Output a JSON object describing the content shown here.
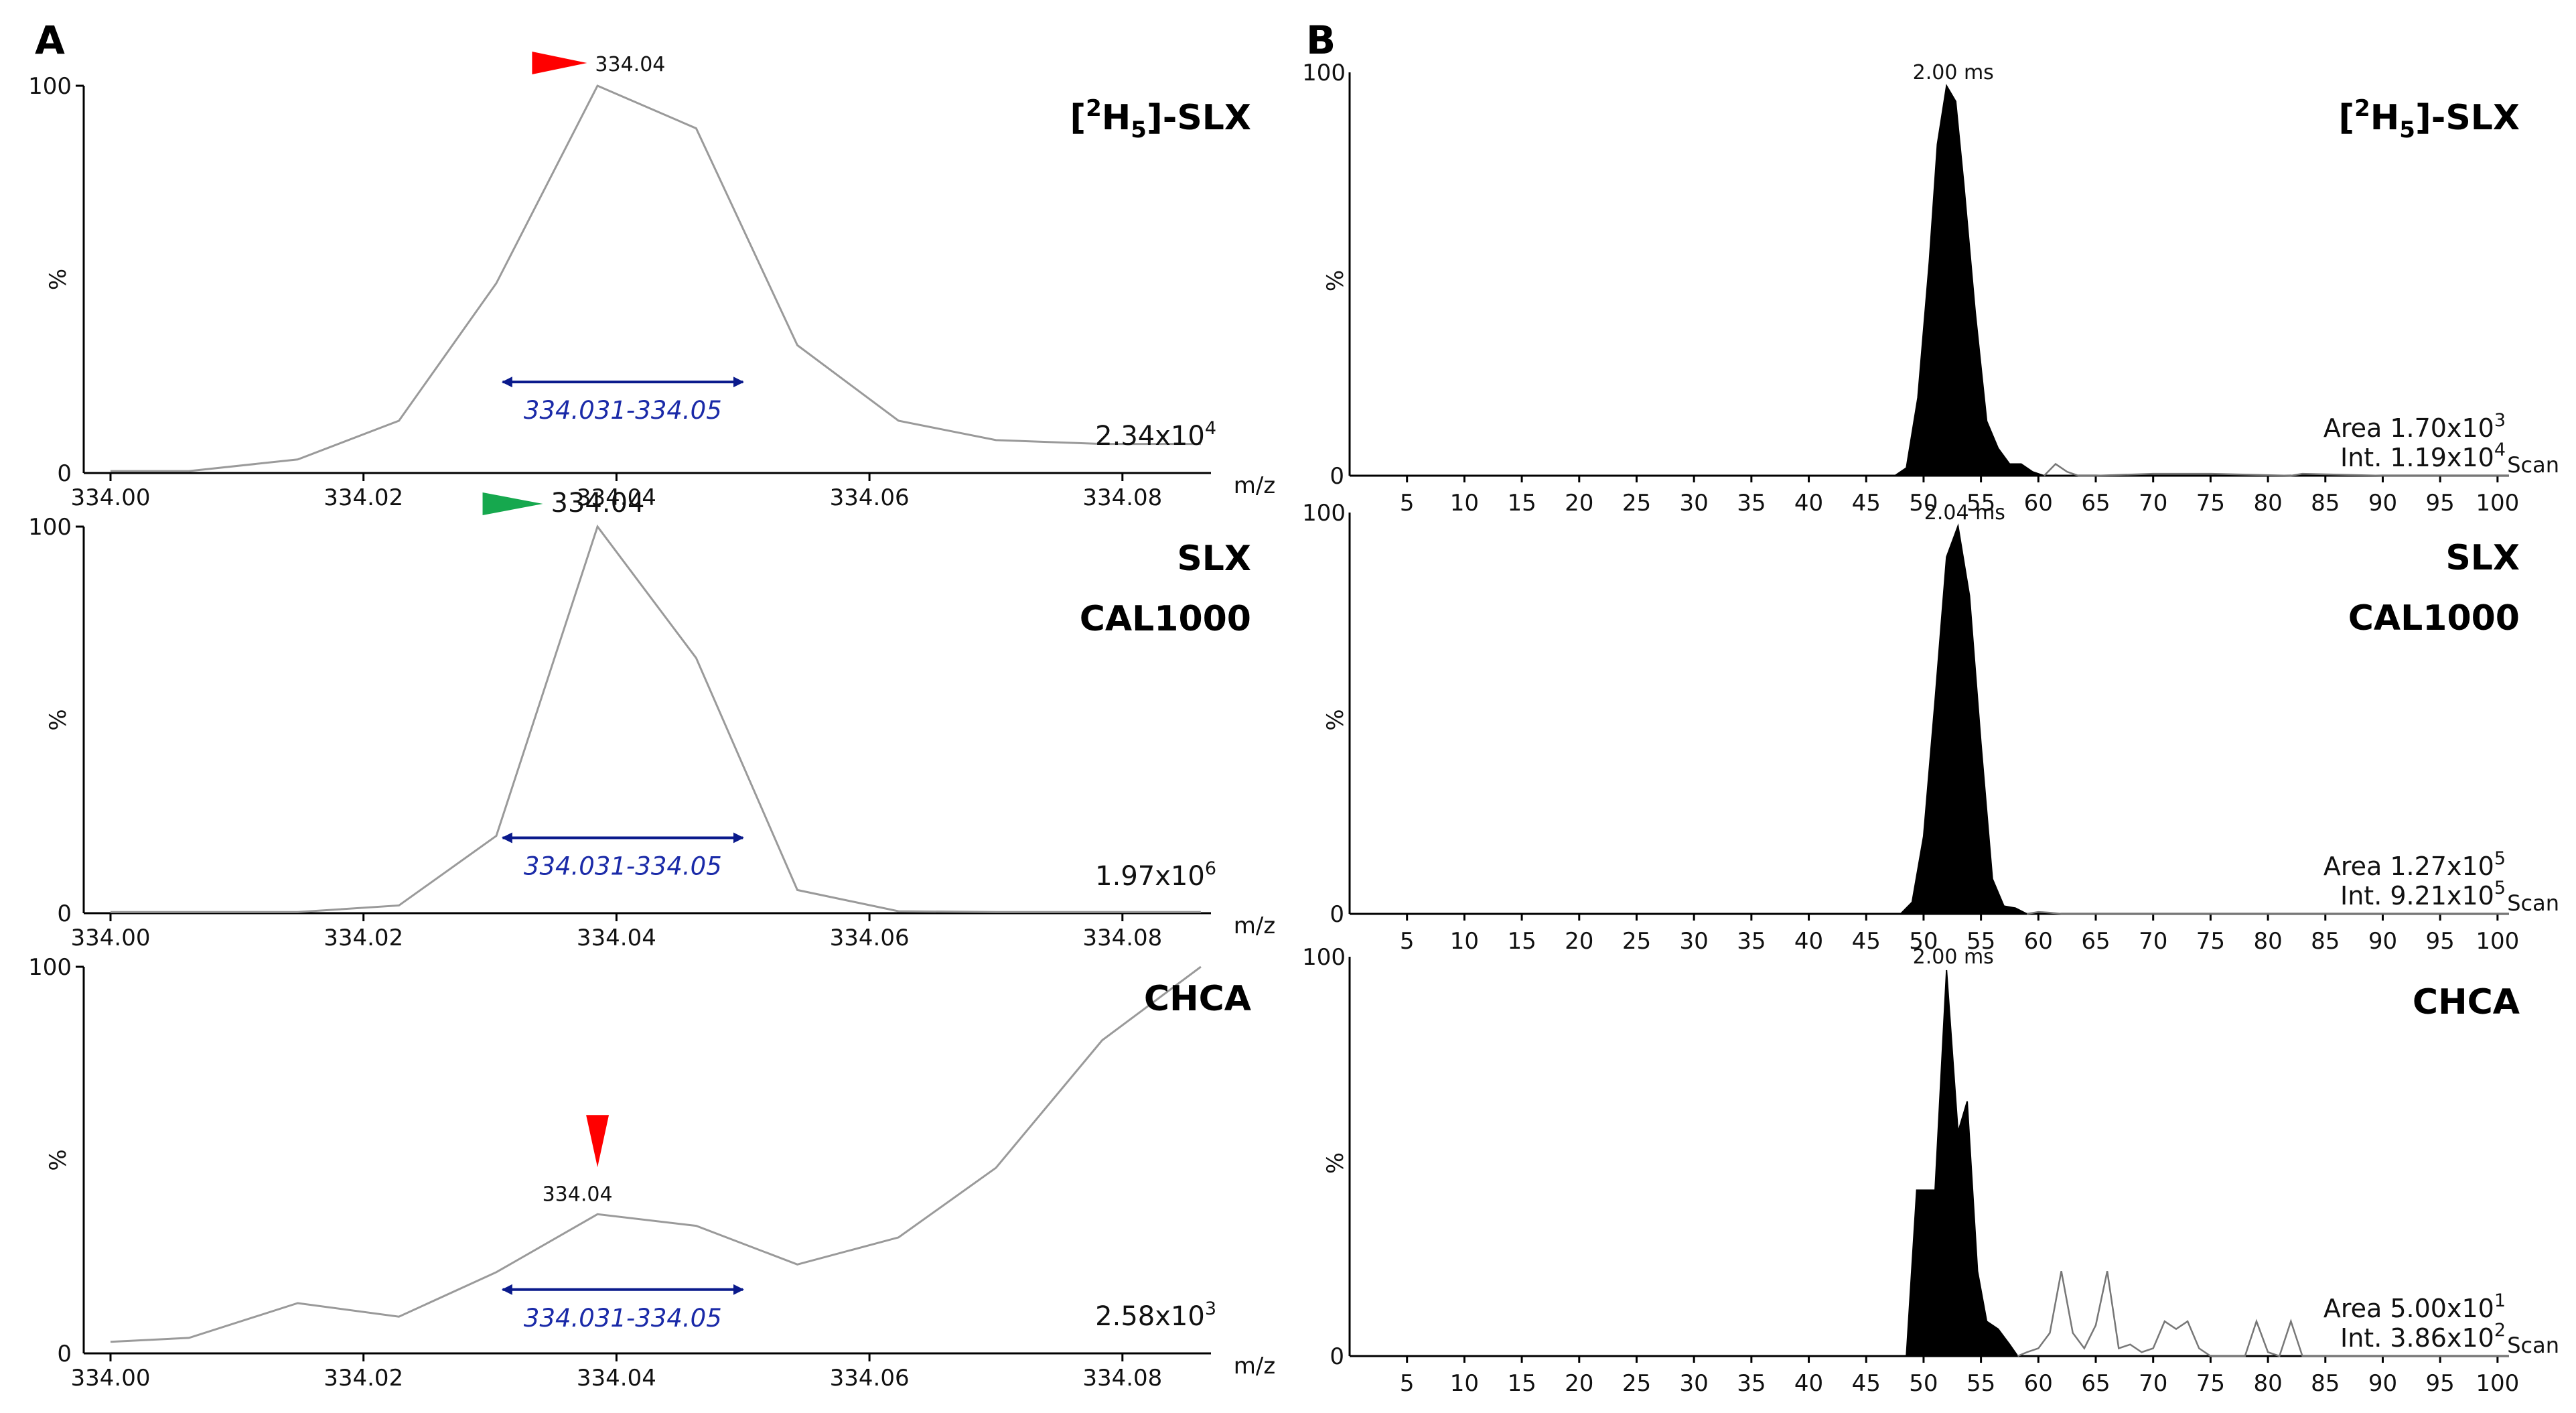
{
  "figure": {
    "panel_a_label": "A",
    "panel_b_label": "B",
    "colors": {
      "trace": "#9a9a9a",
      "window": "#0a1a8c",
      "window_text": "#1a2aa8",
      "red_marker": "#ff0000",
      "green_marker": "#16a84e",
      "fill": "#000000"
    }
  },
  "chart_data": [
    {
      "type": "line",
      "panel": "A",
      "title": "[²H₅]-SLX",
      "title_parts": [
        "[",
        "2",
        "H",
        "5",
        "]-SLX"
      ],
      "xlabel": "m/z",
      "ylabel": "%",
      "xlim": [
        334.0,
        334.087
      ],
      "ylim": [
        0,
        100
      ],
      "xticks": [
        "334.00",
        "334.02",
        "334.04",
        "334.06",
        "334.08"
      ],
      "yticks": [
        "0",
        "100"
      ],
      "x": [
        334.0,
        334.0062,
        334.0148,
        334.0228,
        334.0305,
        334.0385,
        334.0463,
        334.0543,
        334.0623,
        334.07,
        334.0784,
        334.0862
      ],
      "y": [
        0.5,
        0.5,
        3.5,
        13.5,
        49,
        100,
        89,
        33,
        13.5,
        8.5,
        7.5,
        7.5
      ],
      "peak_label": "334.04",
      "peak_marker": "red-right",
      "peak_marker_x": 334.0355,
      "normalization": "2.34x10",
      "normalization_exp": "4",
      "window_label": "334.031-334.05",
      "window": [
        334.031,
        334.05
      ],
      "window_y": 23.5
    },
    {
      "type": "line",
      "panel": "A",
      "title": "SLX",
      "subtitle": "CAL1000",
      "xlabel": "m/z",
      "ylabel": "%",
      "xlim": [
        334.0,
        334.087
      ],
      "ylim": [
        0,
        100
      ],
      "xticks": [
        "334.00",
        "334.02",
        "334.04",
        "334.06",
        "334.08"
      ],
      "yticks": [
        "0",
        "100"
      ],
      "x": [
        334.0,
        334.0062,
        334.0148,
        334.0228,
        334.0305,
        334.0385,
        334.0463,
        334.0543,
        334.0623,
        334.07,
        334.0784,
        334.0862
      ],
      "y": [
        0.3,
        0.3,
        0.3,
        2,
        20,
        100,
        66,
        6,
        0.5,
        0.3,
        0.3,
        0.3
      ],
      "peak_label": "334.04",
      "peak_marker": "green-right",
      "peak_marker_x": 334.0318,
      "normalization": "1.97x10",
      "normalization_exp": "6",
      "window_label": "334.031-334.05",
      "window": [
        334.031,
        334.05
      ],
      "window_y": 19.5
    },
    {
      "type": "line",
      "panel": "A",
      "title": "CHCA",
      "xlabel": "m/z",
      "ylabel": "%",
      "xlim": [
        334.0,
        334.087
      ],
      "ylim": [
        0,
        100
      ],
      "xticks": [
        "334.00",
        "334.02",
        "334.04",
        "334.06",
        "334.08"
      ],
      "yticks": [
        "0",
        "100"
      ],
      "x": [
        334.0,
        334.0062,
        334.0148,
        334.0228,
        334.0305,
        334.0385,
        334.0463,
        334.0543,
        334.0623,
        334.07,
        334.0784,
        334.0862
      ],
      "y": [
        3,
        4,
        13,
        9.5,
        21,
        36,
        33,
        23,
        30,
        48,
        81,
        100
      ],
      "peak_label": "334.04",
      "peak_marker": "red-down",
      "peak_marker_x": 334.0385,
      "normalization": "2.58x10",
      "normalization_exp": "3",
      "window_label": "334.031-334.05",
      "window": [
        334.031,
        334.05
      ],
      "window_y": 16.5
    },
    {
      "type": "area",
      "panel": "B",
      "title": "[²H₅]-SLX",
      "title_parts": [
        "[",
        "2",
        "H",
        "5",
        "]-SLX"
      ],
      "xlabel": "Scan",
      "ylabel": "%",
      "xlim": [
        0,
        101
      ],
      "ylim": [
        0,
        100
      ],
      "xticks": [
        "5",
        "10",
        "15",
        "20",
        "25",
        "30",
        "35",
        "40",
        "45",
        "50",
        "55",
        "60",
        "65",
        "70",
        "75",
        "80",
        "85",
        "90",
        "95",
        "100"
      ],
      "yticks": [
        "0",
        "100"
      ],
      "rt_label": "2.00 ms",
      "rt_scan": 52,
      "x": [
        1,
        47.5,
        48.5,
        49.5,
        50.5,
        51.2,
        52,
        52.8,
        53.5,
        54.5,
        55.5,
        56.5,
        57.5,
        58.5,
        59.5,
        60.5,
        101
      ],
      "y": [
        0,
        0,
        2,
        20,
        55,
        85,
        100,
        96,
        75,
        42,
        14,
        7,
        3,
        3,
        1,
        0,
        0
      ],
      "noise_x": [
        60.5,
        61.5,
        62.5,
        63.5,
        65,
        70,
        75,
        82,
        83,
        90,
        101
      ],
      "noise_y": [
        0,
        3,
        1,
        0,
        0,
        0.5,
        0.5,
        0,
        0.5,
        0,
        0
      ],
      "area": "Area 1.70x10",
      "area_exp": "3",
      "intensity": "Int. 1.19x10",
      "intensity_exp": "4"
    },
    {
      "type": "area",
      "panel": "B",
      "title": "SLX",
      "subtitle": "CAL1000",
      "xlabel": "Scan",
      "ylabel": "%",
      "xlim": [
        0,
        101
      ],
      "ylim": [
        0,
        100
      ],
      "xticks": [
        "5",
        "10",
        "15",
        "20",
        "25",
        "30",
        "35",
        "40",
        "45",
        "50",
        "55",
        "60",
        "65",
        "70",
        "75",
        "80",
        "85",
        "90",
        "95",
        "100"
      ],
      "yticks": [
        "0",
        "100"
      ],
      "rt_label": "2.04 ms",
      "rt_scan": 53,
      "x": [
        1,
        48,
        49,
        50,
        51,
        52,
        53,
        54,
        55,
        56,
        57,
        58,
        59,
        101
      ],
      "y": [
        0,
        0,
        3,
        20,
        55,
        92,
        100,
        82,
        44,
        9,
        2,
        1.5,
        0,
        0
      ],
      "noise_x": [
        59,
        60,
        61,
        62,
        101
      ],
      "noise_y": [
        0,
        0.5,
        0.3,
        0,
        0
      ],
      "area": "Area 1.27x10",
      "area_exp": "5",
      "intensity": "Int. 9.21x10",
      "intensity_exp": "5"
    },
    {
      "type": "area",
      "panel": "B",
      "title": "CHCA",
      "xlabel": "Scan",
      "ylabel": "%",
      "xlim": [
        0,
        101
      ],
      "ylim": [
        0,
        100
      ],
      "xticks": [
        "5",
        "10",
        "15",
        "20",
        "25",
        "30",
        "35",
        "40",
        "45",
        "50",
        "55",
        "60",
        "65",
        "70",
        "75",
        "80",
        "85",
        "90",
        "95",
        "100"
      ],
      "yticks": [
        "0",
        "100"
      ],
      "rt_label": "2.00 ms",
      "rt_scan": 52,
      "x": [
        1,
        48.5,
        49.4,
        50,
        51,
        52,
        53,
        53.8,
        54.7,
        55.5,
        56.5,
        57.5,
        58.2,
        101
      ],
      "y": [
        0,
        0,
        43,
        43,
        43,
        100,
        58,
        66,
        22,
        9,
        7,
        3,
        0,
        0
      ],
      "noise_x": [
        58.2,
        59,
        60,
        61,
        62,
        63,
        64,
        65,
        66,
        67,
        68,
        69,
        70,
        71,
        72,
        73,
        74,
        75,
        76,
        77,
        78,
        79,
        80,
        81,
        82,
        83,
        101
      ],
      "noise_y": [
        0,
        1,
        2,
        6,
        22,
        6,
        2,
        8,
        22,
        2,
        3,
        1,
        2,
        9,
        7,
        9,
        2,
        0,
        0,
        0,
        0,
        9,
        1,
        0,
        9,
        0,
        0
      ],
      "area": "Area 5.00x10",
      "area_exp": "1",
      "intensity": "Int. 3.86x10",
      "intensity_exp": "2"
    }
  ]
}
